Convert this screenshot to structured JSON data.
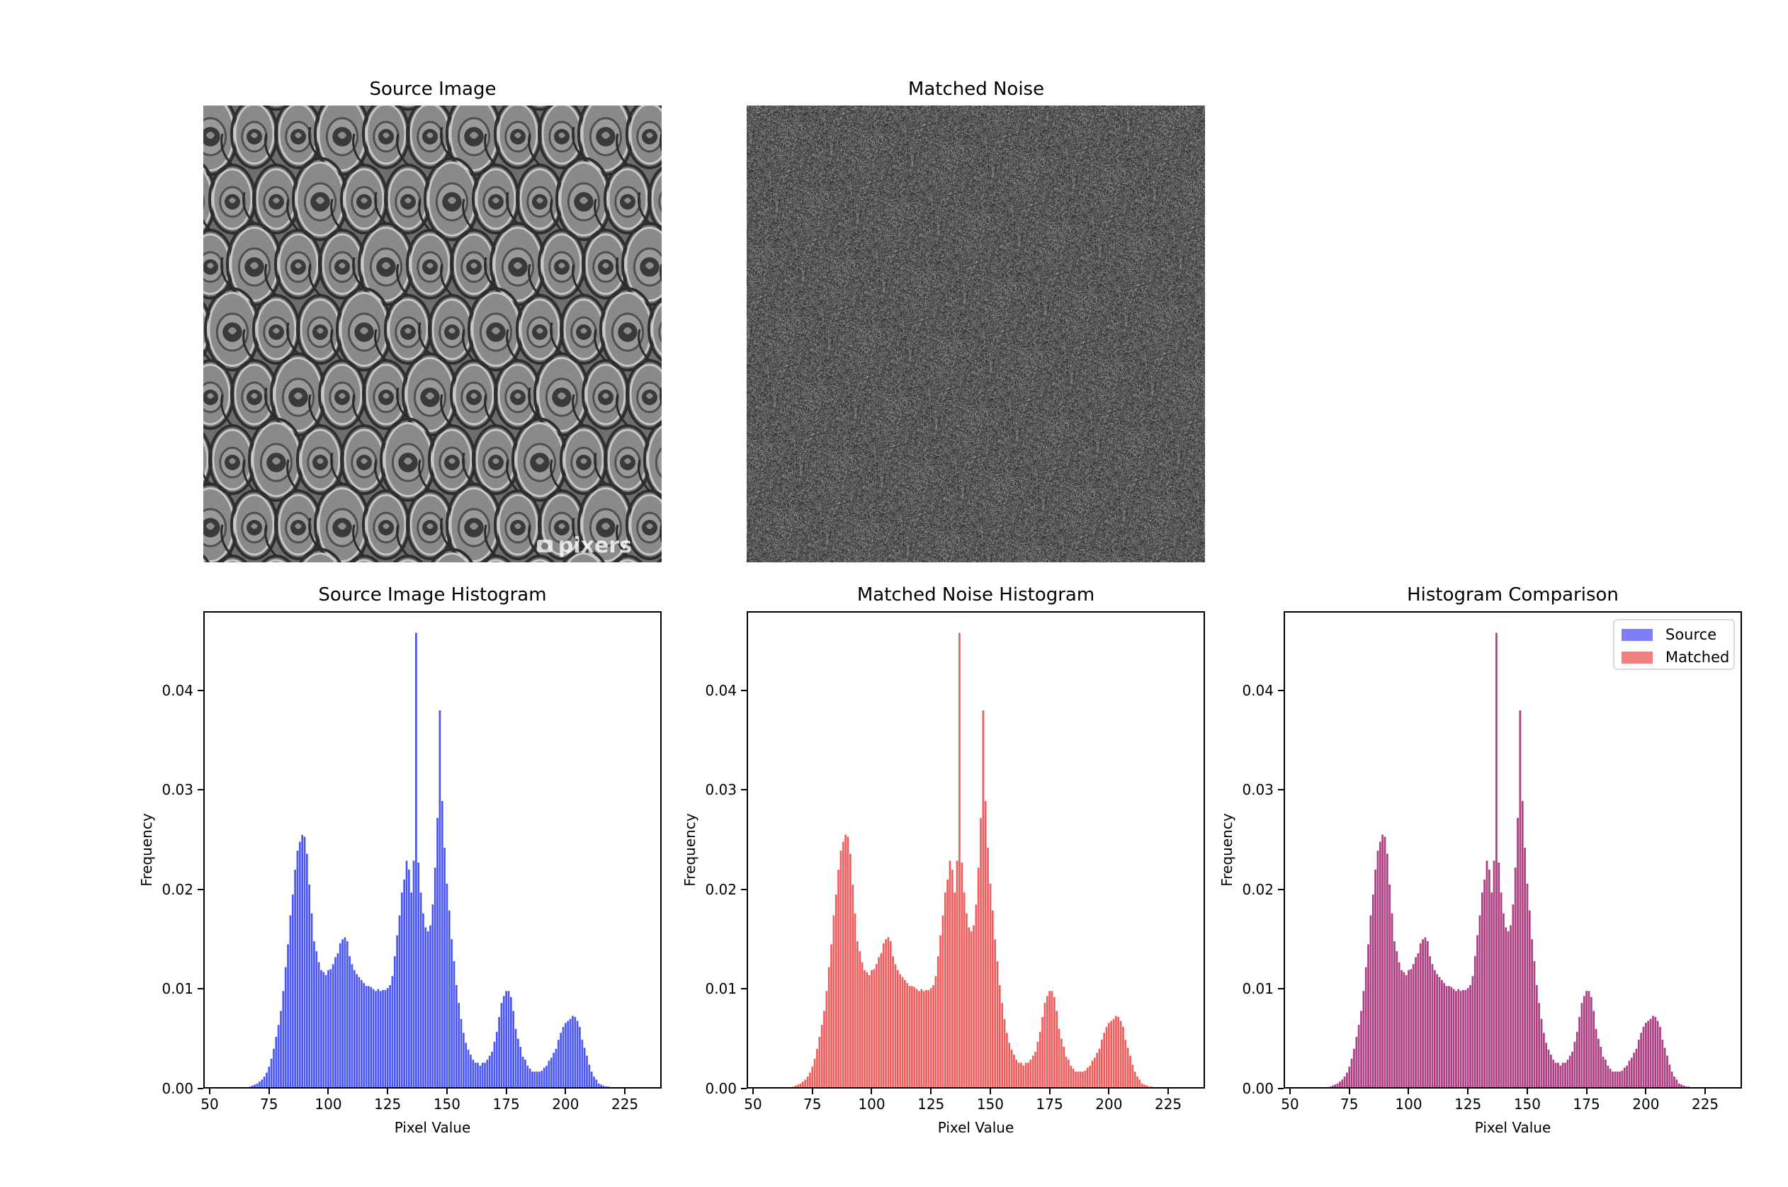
{
  "panels": {
    "source_image": {
      "title": "Source Image",
      "watermark": "pixers"
    },
    "matched_noise": {
      "title": "Matched Noise"
    }
  },
  "colors": {
    "source": "#4a55f5",
    "matched": "#f05c5c",
    "overlay": "#b0467f",
    "legend_source": "#7f7ff5",
    "legend_matched": "#f08080"
  },
  "chart_data": [
    {
      "type": "bar",
      "title": "Source Image Histogram",
      "xlabel": "Pixel Value",
      "ylabel": "Frequency",
      "xlim": [
        47.3,
        240.5
      ],
      "ylim": [
        0,
        0.04797
      ],
      "xticks": [
        50,
        75,
        100,
        125,
        150,
        175,
        200,
        225
      ],
      "yticks": [
        "0.00",
        "0.01",
        "0.02",
        "0.03",
        "0.04"
      ],
      "color": "#4a55f5",
      "series": [
        {
          "name": "Source",
          "ref": "histogram"
        }
      ]
    },
    {
      "type": "bar",
      "title": "Matched Noise Histogram",
      "xlabel": "Pixel Value",
      "ylabel": "Frequency",
      "xlim": [
        47.3,
        240.5
      ],
      "ylim": [
        0,
        0.04797
      ],
      "xticks": [
        50,
        75,
        100,
        125,
        150,
        175,
        200,
        225
      ],
      "yticks": [
        "0.00",
        "0.01",
        "0.02",
        "0.03",
        "0.04"
      ],
      "color": "#f05c5c",
      "series": [
        {
          "name": "Matched",
          "ref": "histogram"
        }
      ]
    },
    {
      "type": "bar",
      "title": "Histogram Comparison",
      "xlabel": "Pixel Value",
      "ylabel": "Frequency",
      "xlim": [
        47.3,
        240.5
      ],
      "ylim": [
        0,
        0.04797
      ],
      "xticks": [
        50,
        75,
        100,
        125,
        150,
        175,
        200,
        225
      ],
      "yticks": [
        "0.00",
        "0.01",
        "0.02",
        "0.03",
        "0.04"
      ],
      "legend": [
        "Source",
        "Matched"
      ],
      "legend_position": "upper right",
      "series": [
        {
          "name": "Source",
          "ref": "histogram",
          "alpha": 0.5,
          "color": "#0000ff"
        },
        {
          "name": "Matched",
          "ref": "histogram",
          "alpha": 0.5,
          "color": "#e00000"
        }
      ]
    }
  ],
  "histogram": {
    "x": [
      65,
      66,
      67,
      68,
      69,
      70,
      71,
      72,
      73,
      74,
      75,
      76,
      77,
      78,
      79,
      80,
      81,
      82,
      83,
      84,
      85,
      86,
      87,
      88,
      89,
      90,
      91,
      92,
      93,
      94,
      95,
      96,
      97,
      98,
      99,
      100,
      101,
      102,
      103,
      104,
      105,
      106,
      107,
      108,
      109,
      110,
      111,
      112,
      113,
      114,
      115,
      116,
      117,
      118,
      119,
      120,
      121,
      122,
      123,
      124,
      125,
      126,
      127,
      128,
      129,
      130,
      131,
      132,
      133,
      134,
      135,
      136,
      137,
      138,
      139,
      140,
      141,
      142,
      143,
      144,
      145,
      146,
      147,
      148,
      149,
      150,
      151,
      152,
      153,
      154,
      155,
      156,
      157,
      158,
      159,
      160,
      161,
      162,
      163,
      164,
      165,
      166,
      167,
      168,
      169,
      170,
      171,
      172,
      173,
      174,
      175,
      176,
      177,
      178,
      179,
      180,
      181,
      182,
      183,
      184,
      185,
      186,
      187,
      188,
      189,
      190,
      191,
      192,
      193,
      194,
      195,
      196,
      197,
      198,
      199,
      200,
      201,
      202,
      203,
      204,
      205,
      206,
      207,
      208,
      209,
      210,
      211,
      212,
      213,
      214,
      215,
      216,
      217,
      218,
      219,
      220
    ],
    "values": [
      0.0001,
      0.0001,
      0.0002,
      0.0003,
      0.0004,
      0.0005,
      0.0007,
      0.0009,
      0.0012,
      0.0016,
      0.0022,
      0.003,
      0.004,
      0.0052,
      0.0064,
      0.0078,
      0.0098,
      0.0122,
      0.0145,
      0.0174,
      0.0195,
      0.022,
      0.0239,
      0.0248,
      0.0255,
      0.0253,
      0.0236,
      0.0205,
      0.0176,
      0.0148,
      0.0138,
      0.0127,
      0.0119,
      0.0117,
      0.0114,
      0.0119,
      0.012,
      0.0125,
      0.0132,
      0.0136,
      0.0146,
      0.015,
      0.0152,
      0.0148,
      0.0133,
      0.0125,
      0.0119,
      0.0115,
      0.0112,
      0.0109,
      0.0106,
      0.0103,
      0.0103,
      0.0102,
      0.01,
      0.0098,
      0.01,
      0.0098,
      0.0099,
      0.0099,
      0.0101,
      0.0104,
      0.0113,
      0.0133,
      0.0154,
      0.0174,
      0.0197,
      0.021,
      0.0229,
      0.022,
      0.0197,
      0.0229,
      0.0458,
      0.0227,
      0.0197,
      0.0176,
      0.0162,
      0.0158,
      0.0164,
      0.0185,
      0.0222,
      0.0272,
      0.038,
      0.0289,
      0.0242,
      0.0206,
      0.0179,
      0.015,
      0.0128,
      0.0104,
      0.0086,
      0.007,
      0.0056,
      0.0046,
      0.0039,
      0.0034,
      0.0029,
      0.0026,
      0.0026,
      0.0023,
      0.0026,
      0.0026,
      0.0029,
      0.0033,
      0.0037,
      0.0047,
      0.0057,
      0.0072,
      0.0086,
      0.0093,
      0.0098,
      0.0098,
      0.0092,
      0.0078,
      0.006,
      0.005,
      0.0042,
      0.0032,
      0.0029,
      0.0023,
      0.002,
      0.0017,
      0.0017,
      0.0017,
      0.0017,
      0.0018,
      0.0021,
      0.0023,
      0.0028,
      0.0031,
      0.0036,
      0.004,
      0.0049,
      0.0056,
      0.0062,
      0.0066,
      0.0068,
      0.007,
      0.0073,
      0.0072,
      0.0068,
      0.0062,
      0.0049,
      0.0041,
      0.0033,
      0.0024,
      0.0017,
      0.0012,
      0.0009,
      0.0005,
      0.0004,
      0.0003,
      0.0002,
      0.0002,
      0.0001,
      0.0001
    ]
  }
}
